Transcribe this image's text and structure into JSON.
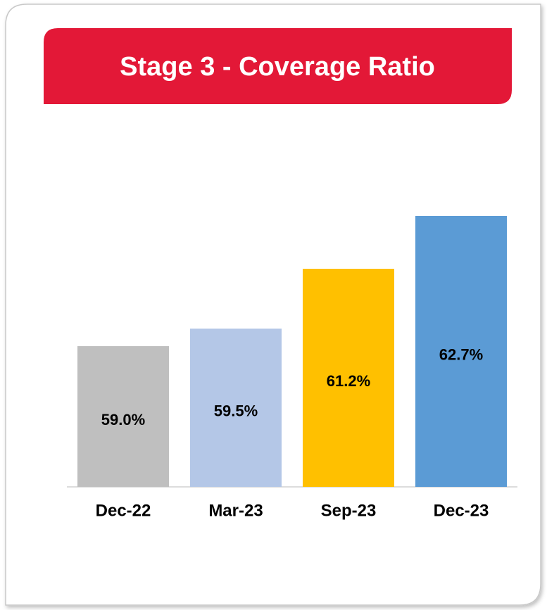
{
  "chart_data": {
    "type": "bar",
    "title": "Stage 3 - Coverage Ratio",
    "categories": [
      "Dec-22",
      "Mar-23",
      "Sep-23",
      "Dec-23"
    ],
    "values": [
      59.0,
      59.5,
      61.2,
      62.7
    ],
    "value_labels": [
      "59.0%",
      "59.5%",
      "61.2%",
      "62.7%"
    ],
    "colors": [
      "#bfbfbf",
      "#b4c7e7",
      "#ffc000",
      "#5b9bd5"
    ],
    "ylim": [
      55,
      63
    ]
  }
}
